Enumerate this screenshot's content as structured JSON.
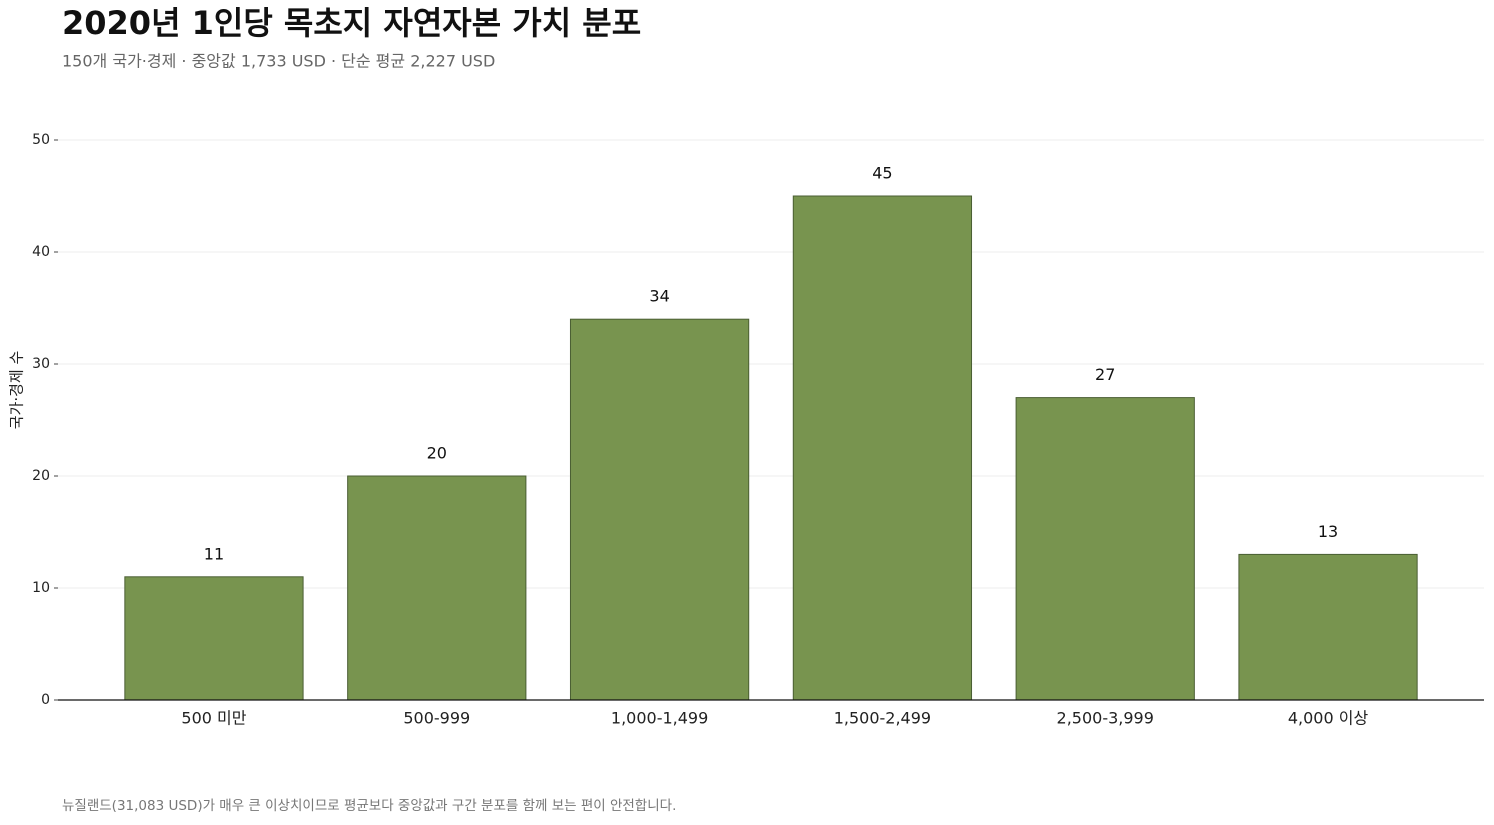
{
  "chart_data": {
    "type": "bar",
    "title": "2020년 1인당 목초지 자연자본 가치 분포",
    "subtitle": "150개 국가·경제 · 중앙값 1,733 USD · 단순 평균 2,227 USD",
    "y_label": "국가·경제 수",
    "footnote": "뉴질랜드(31,083 USD)가 매우 큰 이상치이므로 평균보다 중앙값과 구간 분포를 함께 보는 편이 안전합니다.",
    "categories": [
      "500 미만",
      "500-999",
      "1,000-1,499",
      "1,500-2,499",
      "2,500-3,999",
      "4,000 이상"
    ],
    "values": [
      11,
      20,
      34,
      45,
      27,
      13
    ],
    "color": "#78944f",
    "ylim": [
      0,
      50
    ],
    "yticks": [
      0,
      10,
      20,
      30,
      40,
      50
    ],
    "grid": true
  }
}
